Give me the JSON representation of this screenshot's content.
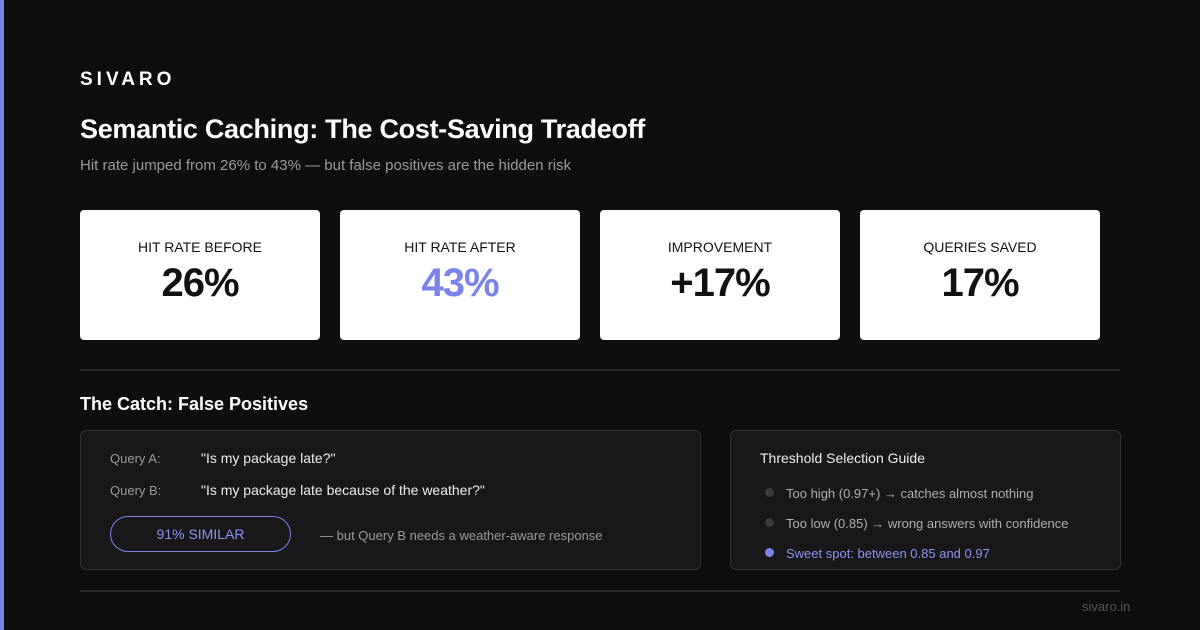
{
  "brand": "SIVARO",
  "title": "Semantic Caching: The Cost-Saving Tradeoff",
  "subtitle": "Hit rate jumped from 26% to 43% — but false positives are the hidden risk",
  "metrics": [
    {
      "label": "HIT RATE BEFORE",
      "value": "26%"
    },
    {
      "label": "HIT RATE AFTER",
      "value": "43%"
    },
    {
      "label": "IMPROVEMENT",
      "value": "+17%"
    },
    {
      "label": "QUERIES SAVED",
      "value": "17%"
    }
  ],
  "section_title": "The Catch: False Positives",
  "example": {
    "queries": [
      {
        "label": "Query A:",
        "text": "\"Is my package late?\""
      },
      {
        "label": "Query B:",
        "text": "\"Is my package late because of the weather?\""
      }
    ],
    "badge": "91% SIMILAR",
    "note": "— but Query B needs a weather-aware response"
  },
  "guide": {
    "title": "Threshold Selection Guide",
    "items": [
      "Too high (0.97+) → catches almost nothing",
      "Too low (0.85) → wrong answers with confidence",
      "Sweet spot: between 0.85 and 0.97"
    ]
  },
  "footer": "sivaro.in"
}
